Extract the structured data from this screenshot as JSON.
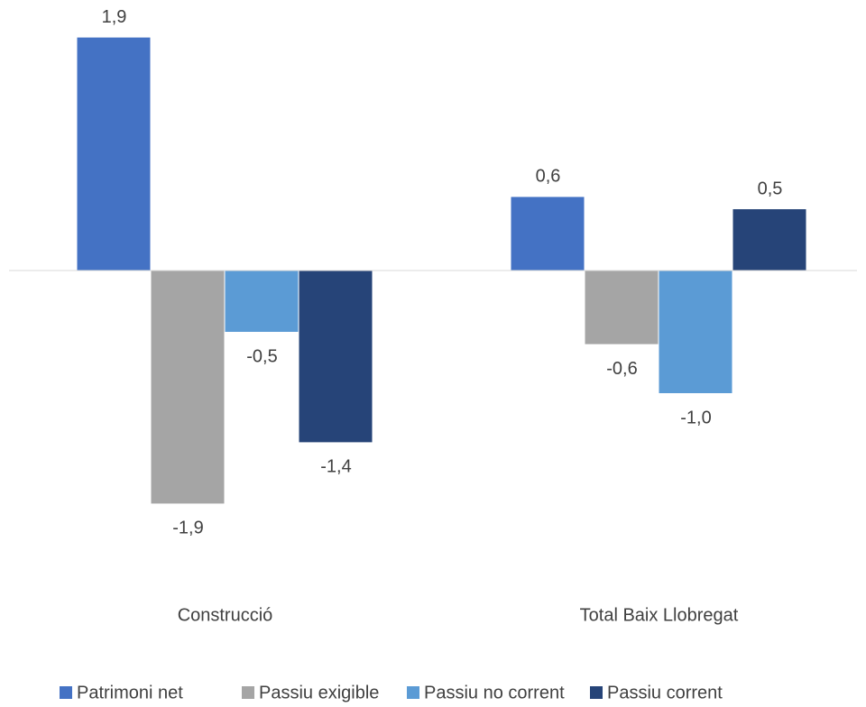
{
  "chart_data": {
    "type": "bar",
    "categories": [
      "Construcció",
      "Total Baix Llobregat"
    ],
    "series": [
      {
        "name": "Patrimoni net",
        "color": "#4472c4",
        "values": [
          1.9,
          0.6
        ],
        "value_labels": [
          "1,9",
          "0,6"
        ]
      },
      {
        "name": "Passiu exigible",
        "color": "#a5a5a5",
        "values": [
          -1.9,
          -0.6
        ],
        "value_labels": [
          "-1,9",
          "-0,6"
        ]
      },
      {
        "name": "Passiu no corrent",
        "color": "#5b9bd5",
        "values": [
          -0.5,
          -1.0
        ],
        "value_labels": [
          "-0,5",
          "-1,0"
        ]
      },
      {
        "name": "Passiu corrent",
        "color": "#264478",
        "values": [
          -1.4,
          0.5
        ],
        "value_labels": [
          "-1,4",
          "0,5"
        ]
      }
    ],
    "legend": "bottom"
  }
}
